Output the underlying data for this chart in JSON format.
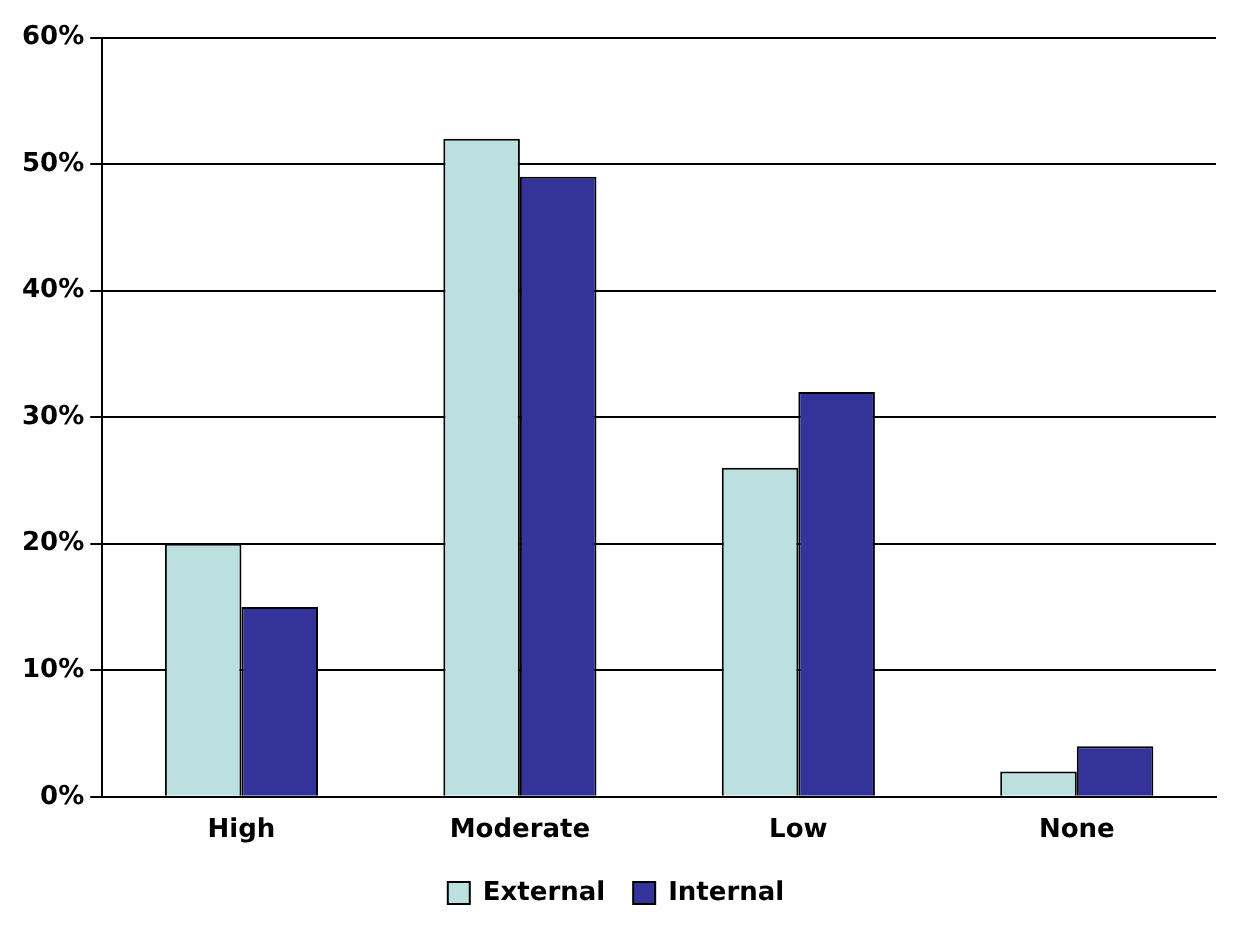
{
  "chart_data": {
    "type": "bar",
    "categories": [
      "High",
      "Moderate",
      "Low",
      "None"
    ],
    "series": [
      {
        "name": "External",
        "color": "#bce0e0",
        "values": [
          20,
          52,
          26,
          2
        ]
      },
      {
        "name": "Internal",
        "color": "#333399",
        "values": [
          15,
          49,
          32,
          4
        ]
      }
    ],
    "ylim": [
      0,
      60
    ],
    "yticks": [
      {
        "value": 0,
        "label": "0%"
      },
      {
        "value": 10,
        "label": "10%"
      },
      {
        "value": 20,
        "label": "20%"
      },
      {
        "value": 30,
        "label": "30%"
      },
      {
        "value": 40,
        "label": "40%"
      },
      {
        "value": 50,
        "label": "50%"
      },
      {
        "value": 60,
        "label": "60%"
      }
    ],
    "grid": "y",
    "legend": "bottom"
  }
}
